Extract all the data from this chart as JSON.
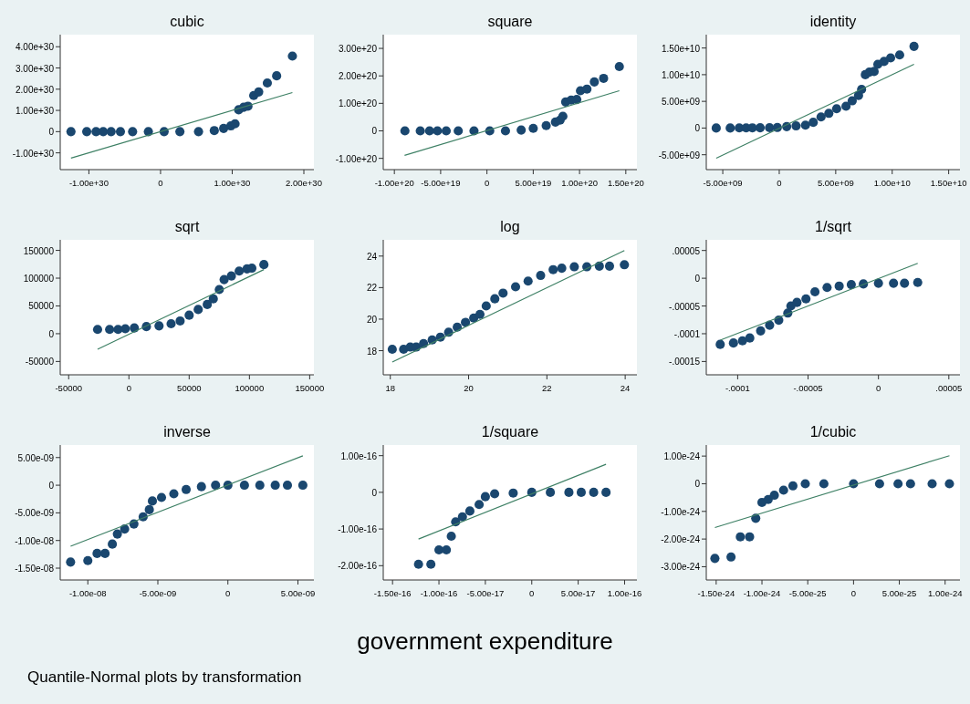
{
  "chart_data": [
    {
      "type": "scatter",
      "title": "cubic",
      "xlim": [
        -1.4e+30,
        2.14e+30
      ],
      "ylim": [
        -1.79e+30,
        4.57e+30
      ],
      "xticks": [
        {
          "value": -1e+30,
          "label": "-1.00e+30"
        },
        0,
        {
          "value": 1e+30,
          "label": "1.00e+30"
        },
        {
          "value": 2e+30,
          "label": "2.00e+30"
        }
      ],
      "yticks": [
        {
          "value": -1e+30,
          "label": "-1.00e+30"
        },
        0,
        {
          "value": 1e+30,
          "label": "1.00e+30"
        },
        {
          "value": 2e+30,
          "label": "2.00e+30"
        },
        {
          "value": 3e+30,
          "label": "3.00e+30"
        },
        {
          "value": 4e+30,
          "label": "4.00e+30"
        }
      ],
      "series": [
        {
          "marker": "circle",
          "color": "#1a476f",
          "x": [
            -1.25e+30,
            -1.03e+30,
            -9e+29,
            -8e+29,
            -6.9e+29,
            -5.6e+29,
            -3.9e+29,
            -1.7e+29,
            5e+28,
            2.7e+29,
            5.3e+29,
            7.5e+29,
            8.8e+29,
            9.8e+29,
            1.04e+30,
            1.09e+30,
            1.16e+30,
            1.22e+30,
            1.3e+30,
            1.37e+30,
            1.49e+30,
            1.62e+30,
            1.84e+30
          ],
          "values": [
            0,
            0,
            0,
            0,
            0,
            0,
            0,
            0,
            0,
            0,
            0,
            5e+28,
            1.5e+29,
            2.7e+29,
            3.7e+29,
            1.03e+30,
            1.15e+30,
            1.2e+30,
            1.7e+30,
            1.87e+30,
            2.29e+30,
            2.63e+30,
            3.56e+30
          ]
        },
        {
          "type": "line",
          "color": "#3e8065",
          "x": [
            -1.25e+30,
            1.84e+30
          ],
          "values": [
            -1.25e+30,
            1.84e+30
          ]
        }
      ]
    },
    {
      "type": "scatter",
      "title": "square",
      "xlim": [
        -1.12e+20,
        1.62e+20
      ],
      "ylim": [
        -1.41e+20,
        3.5e+20
      ],
      "xticks": [
        {
          "value": -1e+20,
          "label": "-1.00e+20"
        },
        {
          "value": -5e+19,
          "label": "-5.00e+19"
        },
        0,
        {
          "value": 5e+19,
          "label": "5.00e+19"
        },
        {
          "value": 1e+20,
          "label": "1.00e+20"
        },
        {
          "value": 1.5e+20,
          "label": "1.50e+20"
        }
      ],
      "yticks": [
        {
          "value": -1e+20,
          "label": "-1.00e+20"
        },
        0,
        {
          "value": 1e+20,
          "label": "1.00e+20"
        },
        {
          "value": 2e+20,
          "label": "2.00e+20"
        },
        {
          "value": 3e+20,
          "label": "3.00e+20"
        }
      ],
      "series": [
        {
          "marker": "circle",
          "color": "#1a476f",
          "x": [
            -8.86e+19,
            -7.2e+19,
            -6.2e+19,
            -5.35e+19,
            -4.4e+19,
            -3.1e+19,
            -1.4e+19,
            3e+18,
            2e+19,
            3.7e+19,
            5e+19,
            6.4e+19,
            7.4e+19,
            7.9e+19,
            8.2e+19,
            8.5e+19,
            9.1e+19,
            9.7e+19,
            1.01e+20,
            1.08e+20,
            1.16e+20,
            1.26e+20,
            1.43e+20
          ],
          "values": [
            0,
            0,
            0,
            0,
            0,
            0,
            0,
            0,
            0,
            3e+18,
            9e+18,
            1.9e+19,
            3.2e+19,
            3.9e+19,
            5.3e+19,
            1.05e+20,
            1.12e+20,
            1.14e+20,
            1.46e+20,
            1.52e+20,
            1.78e+20,
            1.91e+20,
            2.34e+20
          ]
        },
        {
          "type": "line",
          "color": "#3e8065",
          "x": [
            -8.9e+19,
            1.43e+20
          ],
          "values": [
            -8.9e+19,
            1.46e+20
          ]
        }
      ]
    },
    {
      "type": "scatter",
      "title": "identity",
      "xlim": [
        -6460000000.0,
        16000000000.0
      ],
      "ylim": [
        -7790000000.0,
        17500000000.0
      ],
      "xticks": [
        {
          "value": -5000000000.0,
          "label": "-5.00e+09"
        },
        0,
        {
          "value": 5000000000.0,
          "label": "5.00e+09"
        },
        {
          "value": 10000000000.0,
          "label": "1.00e+10"
        },
        {
          "value": 15000000000.0,
          "label": "1.50e+10"
        }
      ],
      "yticks": [
        {
          "value": -5000000000.0,
          "label": "-5.00e+09"
        },
        0,
        {
          "value": 5000000000.0,
          "label": "5.00e+09"
        },
        {
          "value": 10000000000.0,
          "label": "1.00e+10"
        },
        {
          "value": 15000000000.0,
          "label": "1.50e+10"
        }
      ],
      "series": [
        {
          "marker": "circle",
          "color": "#1a476f",
          "x": [
            -5580000000.0,
            -4340000000.0,
            -3540000000.0,
            -2930000000.0,
            -2380000000.0,
            -1690000000.0,
            -860000000.0,
            -170000000.0,
            660000000.0,
            1490000000.0,
            2320000000.0,
            3010000000.0,
            3700000000.0,
            4390000000.0,
            5080000000.0,
            5910000000.0,
            6460000000.0,
            7020000000.0,
            7290000000.0,
            7620000000.0,
            7980000000.0,
            8400000000.0,
            8730000000.0,
            9280000000.0,
            9860000000.0,
            10660000000.0,
            11930000000.0
          ],
          "values": [
            0,
            0,
            20000000.0,
            30000000.0,
            40000000.0,
            50000000.0,
            70000000.0,
            100000000.0,
            270000000.0,
            400000000.0,
            540000000.0,
            1070000000.0,
            2080000000.0,
            2750000000.0,
            3620000000.0,
            4090000000.0,
            5100000000.0,
            6110000000.0,
            7250000000.0,
            10000000000.0,
            10470000000.0,
            10600000000.0,
            11950000000.0,
            12480000000.0,
            13150000000.0,
            13690000000.0,
            15300000000.0
          ]
        },
        {
          "type": "line",
          "color": "#3e8065",
          "x": [
            -5580000000.0,
            11930000000.0
          ],
          "values": [
            -5640000000.0,
            11950000000.0
          ]
        }
      ]
    },
    {
      "type": "scatter",
      "title": "sqrt",
      "xlim": [
        -57000,
        153500
      ],
      "ylim": [
        -74000,
        169000
      ],
      "xticks": [
        -50000,
        0,
        50000,
        100000,
        150000
      ],
      "yticks": [
        -50000,
        0,
        50000,
        100000,
        150000
      ],
      "series": [
        {
          "marker": "circle",
          "color": "#1a476f",
          "x": [
            -26000,
            -16000,
            -9000,
            -3000,
            4500,
            14500,
            25000,
            35000,
            42500,
            50000,
            57500,
            65000,
            70000,
            75000,
            79000,
            85000,
            91500,
            98000,
            102000,
            112000
          ],
          "values": [
            7700,
            7700,
            7700,
            9000,
            10300,
            12800,
            14100,
            18000,
            23000,
            33300,
            43600,
            52600,
            62800,
            79500,
            97400,
            103900,
            112800,
            116700,
            118000,
            124400
          ]
        },
        {
          "type": "line",
          "color": "#3e8065",
          "x": [
            -26000,
            112000
          ],
          "values": [
            -28000,
            115400
          ]
        }
      ]
    },
    {
      "type": "scatter",
      "title": "log",
      "xlim": [
        17.82,
        24.3
      ],
      "ylim": [
        16.47,
        25.03
      ],
      "xticks": [
        18,
        20,
        22,
        24
      ],
      "yticks": [
        18,
        20,
        22,
        24
      ],
      "series": [
        {
          "marker": "circle",
          "color": "#1a476f",
          "x": [
            18.05,
            18.34,
            18.51,
            18.66,
            18.85,
            19.07,
            19.28,
            19.49,
            19.71,
            19.92,
            20.13,
            20.29,
            20.45,
            20.67,
            20.88,
            21.2,
            21.52,
            21.84,
            22.16,
            22.38,
            22.7,
            23.02,
            23.34,
            23.6,
            23.98
          ],
          "values": [
            18.09,
            18.09,
            18.23,
            18.23,
            18.45,
            18.68,
            18.86,
            19.17,
            19.49,
            19.8,
            20.07,
            20.3,
            20.84,
            21.29,
            21.65,
            22.05,
            22.41,
            22.77,
            23.14,
            23.23,
            23.32,
            23.32,
            23.36,
            23.36,
            23.45
          ]
        },
        {
          "type": "line",
          "color": "#3e8065",
          "x": [
            18.05,
            23.98
          ],
          "values": [
            17.28,
            24.35
          ]
        }
      ]
    },
    {
      "type": "scatter",
      "title": "1/sqrt",
      "xlim": [
        -0.0001223,
        5.79e-05
      ],
      "ylim": [
        -0.000174,
        6.92e-05
      ],
      "xticks": [
        {
          "value": -0.0001,
          "label": "-.0001"
        },
        {
          "value": -5e-05,
          "label": "-.00005"
        },
        0,
        {
          "value": 5e-05,
          "label": ".00005"
        }
      ],
      "yticks": [
        {
          "value": -0.00015,
          "label": "-.00015"
        },
        {
          "value": -0.0001,
          "label": "-.0001"
        },
        {
          "value": -5e-05,
          "label": "-.00005"
        },
        0,
        {
          "value": 5e-05,
          "label": ".00005"
        }
      ],
      "series": [
        {
          "marker": "circle",
          "color": "#1a476f",
          "x": [
            -0.0001124,
            -0.000103,
            -9.66e-05,
            -9.14e-05,
            -8.37e-05,
            -7.73e-05,
            -7.08e-05,
            -6.44e-05,
            -6.22e-05,
            -5.79e-05,
            -5.15e-05,
            -4.51e-05,
            -3.65e-05,
            -2.79e-05,
            -1.93e-05,
            -1.07e-05,
            0,
            1.07e-05,
            1.85e-05,
            2.79e-05
          ],
          "values": [
            -0.0001192,
            -0.0001167,
            -0.0001128,
            -0.0001077,
            -9.49e-05,
            -8.46e-05,
            -7.56e-05,
            -6.28e-05,
            -5e-05,
            -4.36e-05,
            -3.72e-05,
            -2.44e-05,
            -1.67e-05,
            -1.41e-05,
            -1.15e-05,
            -1.03e-05,
            -9e-06,
            -9e-06,
            -9e-06,
            -7.7e-06
          ]
        },
        {
          "type": "line",
          "color": "#3e8065",
          "x": [
            -0.0001124,
            2.79e-05
          ],
          "values": [
            -0.0001115,
            2.69e-05
          ]
        }
      ]
    },
    {
      "type": "scatter",
      "title": "inverse",
      "xlim": [
        -1.197e-08,
        6.14e-09
      ],
      "ylim": [
        -1.714e-08,
        7.27e-09
      ],
      "xticks": [
        {
          "value": -1e-08,
          "label": "-1.00e-08"
        },
        {
          "value": -5e-09,
          "label": "-5.00e-09"
        },
        0,
        {
          "value": 5e-09,
          "label": "5.00e-09"
        }
      ],
      "yticks": [
        {
          "value": -1.5e-08,
          "label": "-1.50e-08"
        },
        {
          "value": -1e-08,
          "label": "-1.00e-08"
        },
        {
          "value": -5e-09,
          "label": "-5.00e-09"
        },
        0,
        {
          "value": 5e-09,
          "label": "5.00e-09"
        }
      ],
      "series": [
        {
          "marker": "circle",
          "color": "#1a476f",
          "x": [
            -1.123e-08,
            -1e-08,
            -9.34e-09,
            -8.77e-09,
            -8.25e-09,
            -7.89e-09,
            -7.37e-09,
            -6.71e-09,
            -6.05e-09,
            -5.61e-09,
            -5.39e-09,
            -4.74e-09,
            -3.86e-09,
            -2.98e-09,
            -1.89e-09,
            -8.8e-10,
            0,
            1.18e-09,
            2.28e-09,
            3.38e-09,
            4.25e-09,
            5.35e-09
          ],
          "values": [
            -1.39e-08,
            -1.364e-08,
            -1.234e-08,
            -1.234e-08,
            -1.065e-08,
            -8.83e-09,
            -7.92e-09,
            -7.01e-09,
            -5.71e-09,
            -4.42e-09,
            -2.86e-09,
            -2.21e-09,
            -1.56e-09,
            -7.8e-10,
            -2.6e-10,
            0,
            0,
            0,
            0,
            0,
            0,
            0
          ]
        },
        {
          "type": "line",
          "color": "#3e8065",
          "x": [
            -1.123e-08,
            5.35e-09
          ],
          "values": [
            -1.104e-08,
            5.32e-09
          ]
        }
      ]
    },
    {
      "type": "scatter",
      "title": "1/square",
      "xlabel": "government expenditure",
      "annotations": [
        "Quantile-Normal plots by transformation"
      ],
      "xlim": [
        -1.6e-16,
        1.133e-16
      ],
      "ylim": [
        -2.39e-16,
        1.29e-16
      ],
      "xticks": [
        {
          "value": -1.5e-16,
          "label": "-1.50e-16"
        },
        {
          "value": -1e-16,
          "label": "-1.00e-16"
        },
        {
          "value": -5e-17,
          "label": "-5.00e-17"
        },
        0,
        {
          "value": 5e-17,
          "label": "5.00e-17"
        },
        {
          "value": 1e-16,
          "label": "1.00e-16"
        }
      ],
      "yticks": [
        {
          "value": -2e-16,
          "label": "-2.00e-16"
        },
        {
          "value": -1e-16,
          "label": "-1.00e-16"
        },
        0,
        {
          "value": 1e-16,
          "label": "1.00e-16"
        }
      ],
      "series": [
        {
          "marker": "circle",
          "color": "#1a476f",
          "x": [
            -1.22e-16,
            -1.087e-16,
            -1e-16,
            -9.2e-17,
            -8.67e-17,
            -8.2e-17,
            -7.47e-17,
            -6.67e-17,
            -5.67e-17,
            -5e-17,
            -4e-17,
            -2e-17,
            0,
            2e-17,
            4e-17,
            5.33e-17,
            6.67e-17,
            8e-17
          ],
          "values": [
            -1.96e-16,
            -1.96e-16,
            -1.569e-16,
            -1.569e-16,
            -1.196e-16,
            -8.04e-17,
            -6.67e-17,
            -5.1e-17,
            -3.33e-17,
            -1.18e-17,
            -3.9e-18,
            -2e-18,
            0,
            0,
            0,
            0,
            0,
            0
          ]
        },
        {
          "type": "line",
          "color": "#3e8065",
          "x": [
            -1.22e-16,
            8e-17
          ],
          "values": [
            -1.275e-16,
            7.65e-17
          ]
        }
      ]
    },
    {
      "type": "scatter",
      "title": "1/cubic",
      "xlim": [
        -1.608e-24,
        1.162e-24
      ],
      "ylim": [
        -3.48e-24,
        1.4e-24
      ],
      "xticks": [
        {
          "value": -1.5e-24,
          "label": "-1.50e-24"
        },
        {
          "value": -1e-24,
          "label": "-1.00e-24"
        },
        {
          "value": -5e-25,
          "label": "-5.00e-25"
        },
        0,
        {
          "value": 5e-25,
          "label": "5.00e-25"
        },
        {
          "value": 1e-24,
          "label": "1.00e-24"
        }
      ],
      "yticks": [
        {
          "value": -3e-24,
          "label": "-3.00e-24"
        },
        {
          "value": -2e-24,
          "label": "-2.00e-24"
        },
        {
          "value": -1e-24,
          "label": "-1.00e-24"
        },
        0,
        {
          "value": 1e-24,
          "label": "1.00e-24"
        }
      ],
      "series": [
        {
          "marker": "circle",
          "color": "#1a476f",
          "x": [
            -1.514e-24,
            -1.338e-24,
            -1.236e-24,
            -1.135e-24,
            -1.068e-24,
            -1e-24,
            -9.32e-25,
            -8.65e-25,
            -7.64e-25,
            -6.62e-25,
            -5.27e-25,
            -3.24e-25,
            0,
            2.84e-25,
            4.86e-25,
            6.22e-25,
            8.58e-25,
            1.047e-24
          ],
          "values": [
            -2.7e-24,
            -2.65e-24,
            -1.92e-24,
            -1.92e-24,
            -1.25e-24,
            -6.75e-25,
            -5.71e-25,
            -4.16e-25,
            -2.34e-25,
            -7.8e-26,
            0,
            0,
            0,
            0,
            0,
            0,
            0,
            0
          ]
        },
        {
          "type": "line",
          "color": "#3e8065",
          "x": [
            -1.514e-24,
            1.047e-24
          ],
          "values": [
            -1.584e-24,
            1.013e-24
          ]
        }
      ]
    }
  ]
}
